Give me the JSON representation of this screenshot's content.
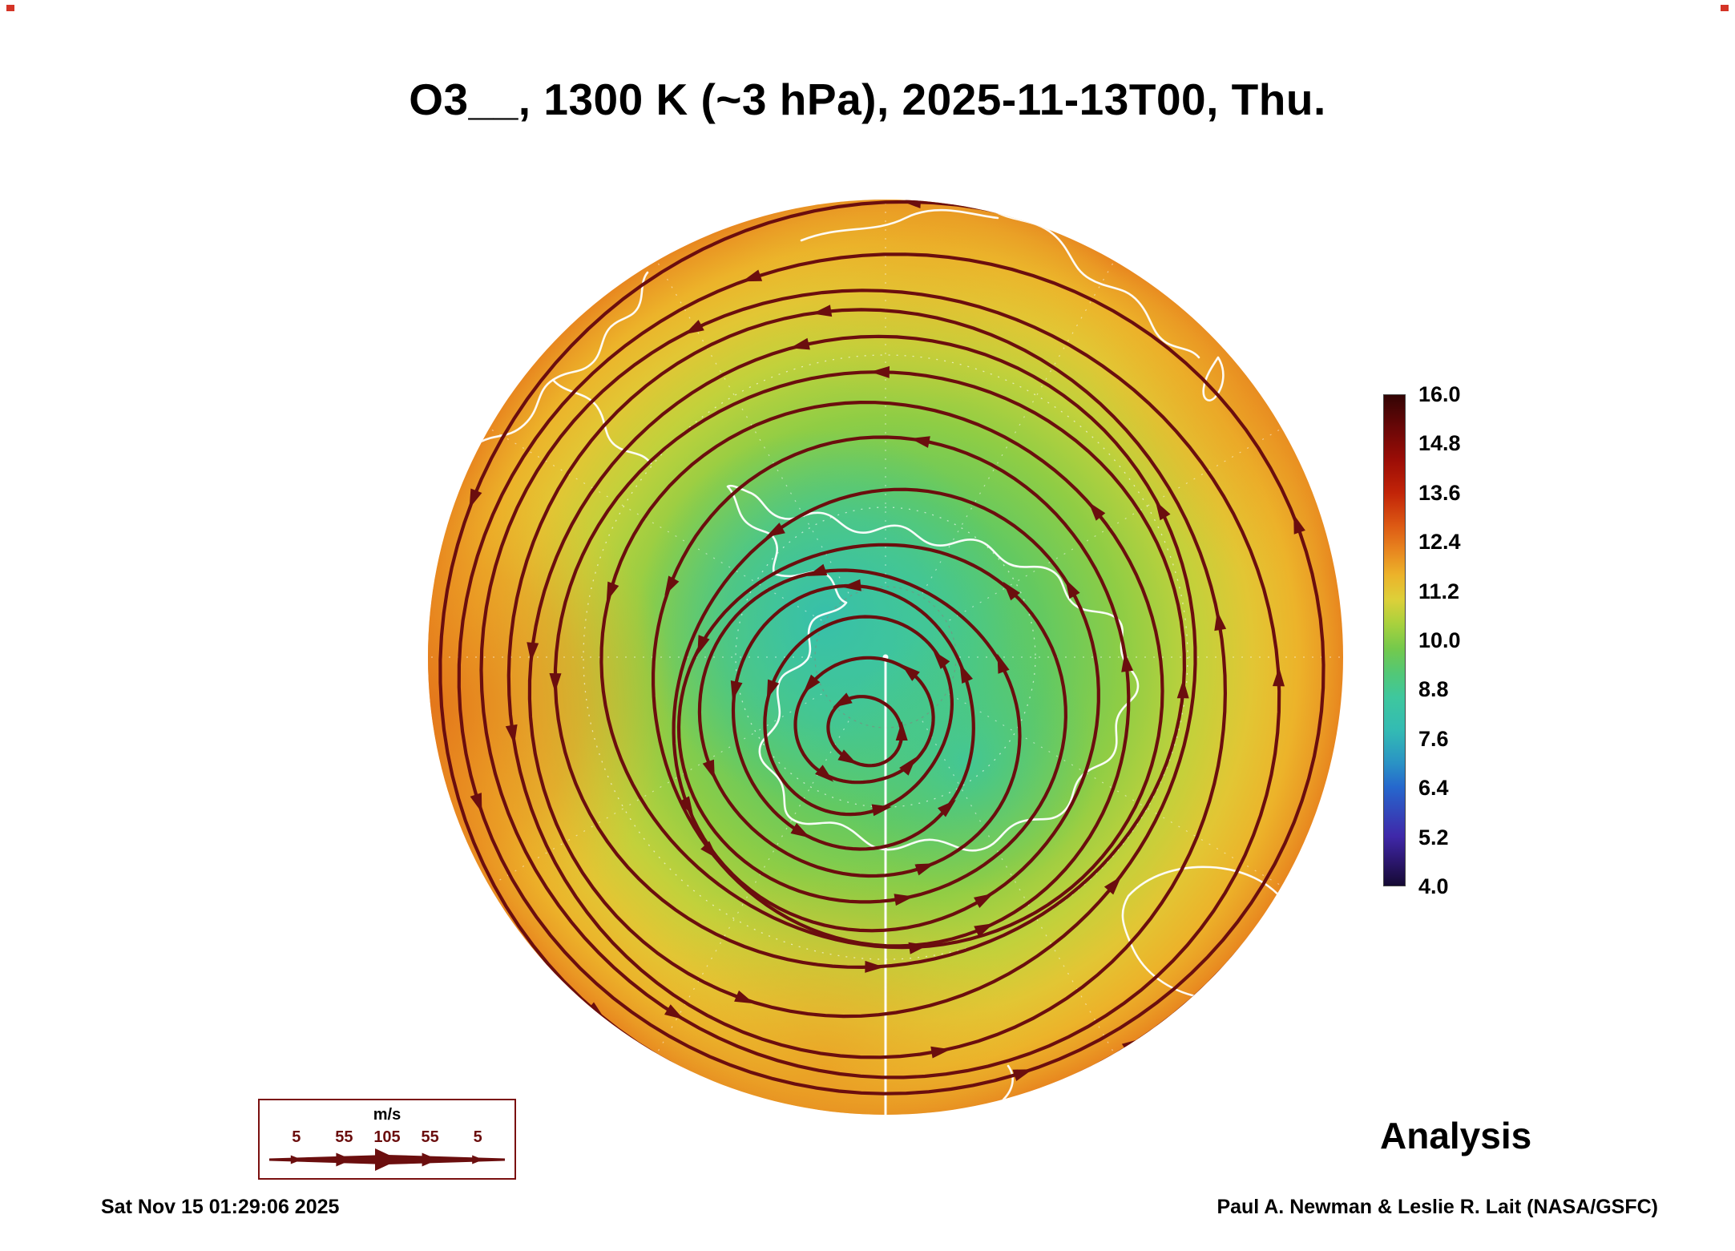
{
  "chart_data": {
    "type": "heatmap",
    "title": "O3__, 1300 K (~3 hPa), 2025-11-13T00, Thu.",
    "species": "O3",
    "level": "1300 K (~3 hPa)",
    "valid_time": "2025-11-13T00, Thu.",
    "projection": "south-polar-stereographic",
    "hemisphere": "southern",
    "overlay": "wind streamlines, circumpolar westerly vortex centered near the pole",
    "background": "#ffffff",
    "streamline_color": "#6b0e0e",
    "coastline_color": "#ffffff",
    "graticule": "dashed white latitude circles and meridians, solid white meridian from pole to bottom rim",
    "colorbar": {
      "min": 4.0,
      "max": 16.0,
      "tick_labels": [
        "16.0",
        "14.8",
        "13.6",
        "12.4",
        "11.2",
        "10.0",
        "8.8",
        "7.6",
        "6.4",
        "5.2",
        "4.0"
      ],
      "stops": [
        {
          "value": 16.0,
          "color": "#330404"
        },
        {
          "value": 15.2,
          "color": "#6a0707"
        },
        {
          "value": 14.4,
          "color": "#9c0d06"
        },
        {
          "value": 13.6,
          "color": "#c22408"
        },
        {
          "value": 12.8,
          "color": "#dd5a14"
        },
        {
          "value": 12.2,
          "color": "#e8861f"
        },
        {
          "value": 11.6,
          "color": "#ecb32a"
        },
        {
          "value": 11.0,
          "color": "#ddd039"
        },
        {
          "value": 10.4,
          "color": "#a8d13d"
        },
        {
          "value": 9.8,
          "color": "#74c94c"
        },
        {
          "value": 9.2,
          "color": "#52c876"
        },
        {
          "value": 8.6,
          "color": "#3ec79e"
        },
        {
          "value": 7.8,
          "color": "#33bbb3"
        },
        {
          "value": 7.0,
          "color": "#2a93c5"
        },
        {
          "value": 6.4,
          "color": "#2667cd"
        },
        {
          "value": 5.8,
          "color": "#3347bb"
        },
        {
          "value": 5.2,
          "color": "#3f28a9"
        },
        {
          "value": 4.6,
          "color": "#2c176f"
        },
        {
          "value": 4.0,
          "color": "#150a33"
        }
      ]
    },
    "field_regions": [
      {
        "region": "polar vortex core over Antarctica",
        "value_est": 8.2
      },
      {
        "region": "mid vortex",
        "value_est": 9.5
      },
      {
        "region": "vortex edge midlatitudes",
        "value_est": 10.8
      },
      {
        "region": "outer rim of map",
        "value_est": 12.2
      }
    ],
    "wind_legend": {
      "units": "m/s",
      "tick_labels": [
        "5",
        "55",
        "105",
        "55",
        "5"
      ]
    }
  },
  "footer": {
    "product_label": "Analysis",
    "timestamp": "Sat Nov 15 01:29:06 2025",
    "credit": "Paul A. Newman & Leslie R. Lait (NASA/GSFC)"
  }
}
